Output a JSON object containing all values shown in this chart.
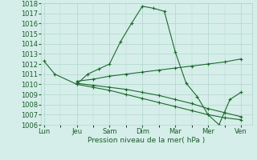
{
  "xlabel": "Pression niveau de la mer( hPa )",
  "bg_color": "#d6eeea",
  "grid_color": "#b0d4cc",
  "line_color": "#1a6b2a",
  "ylim": [
    1006,
    1018
  ],
  "yticks": [
    1006,
    1007,
    1008,
    1009,
    1010,
    1011,
    1012,
    1013,
    1014,
    1015,
    1016,
    1017,
    1018
  ],
  "xtick_labels": [
    "Lun",
    "Jeu",
    "Sam",
    "Dim",
    "Mar",
    "Mer",
    "Ven"
  ],
  "xtick_positions": [
    0,
    12,
    24,
    36,
    48,
    60,
    72
  ],
  "xlim": [
    -1,
    76
  ],
  "series": [
    {
      "x": [
        0,
        4,
        12,
        16,
        20,
        24,
        28,
        32,
        36,
        40,
        44,
        48,
        52,
        56,
        60,
        64,
        68,
        72
      ],
      "y": [
        1012.3,
        1011.0,
        1010.0,
        1011.0,
        1011.5,
        1012.0,
        1014.2,
        1016.0,
        1017.7,
        1017.5,
        1017.2,
        1013.2,
        1010.1,
        1008.8,
        1007.0,
        1006.0,
        1008.5,
        1009.2
      ]
    },
    {
      "x": [
        12,
        18,
        24,
        30,
        36,
        42,
        48,
        54,
        60,
        66,
        72
      ],
      "y": [
        1010.3,
        1010.5,
        1010.8,
        1011.0,
        1011.2,
        1011.4,
        1011.6,
        1011.8,
        1012.0,
        1012.2,
        1012.5
      ]
    },
    {
      "x": [
        12,
        18,
        24,
        30,
        36,
        42,
        48,
        54,
        60,
        66,
        72
      ],
      "y": [
        1010.0,
        1009.7,
        1009.4,
        1009.0,
        1008.6,
        1008.2,
        1007.8,
        1007.4,
        1007.0,
        1006.7,
        1006.5
      ]
    },
    {
      "x": [
        12,
        18,
        24,
        30,
        36,
        42,
        48,
        54,
        60,
        66,
        72
      ],
      "y": [
        1010.1,
        1009.9,
        1009.7,
        1009.5,
        1009.2,
        1008.9,
        1008.5,
        1008.1,
        1007.6,
        1007.2,
        1006.8
      ]
    }
  ]
}
